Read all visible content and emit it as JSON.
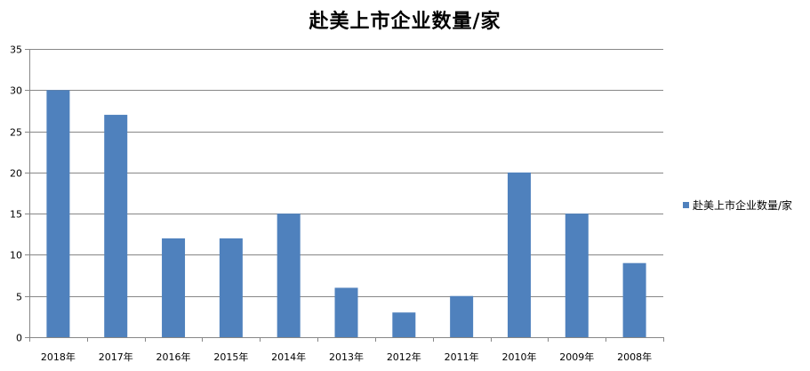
{
  "chart_data": {
    "type": "bar",
    "title": "赴美上市企业数量/家",
    "categories": [
      "2018年",
      "2017年",
      "2016年",
      "2015年",
      "2014年",
      "2013年",
      "2012年",
      "2011年",
      "2010年",
      "2009年",
      "2008年"
    ],
    "series": [
      {
        "name": "赴美上市企业数量/家",
        "values": [
          30,
          27,
          12,
          12,
          15,
          6,
          3,
          5,
          20,
          15,
          9
        ],
        "color": "#4F81BD"
      }
    ],
    "xlabel": "",
    "ylabel": "",
    "ylim": [
      0,
      35
    ],
    "yticks": [
      "0",
      "5",
      "10",
      "15",
      "20",
      "25",
      "30",
      "35"
    ],
    "grid": true,
    "legend_position": "right"
  }
}
